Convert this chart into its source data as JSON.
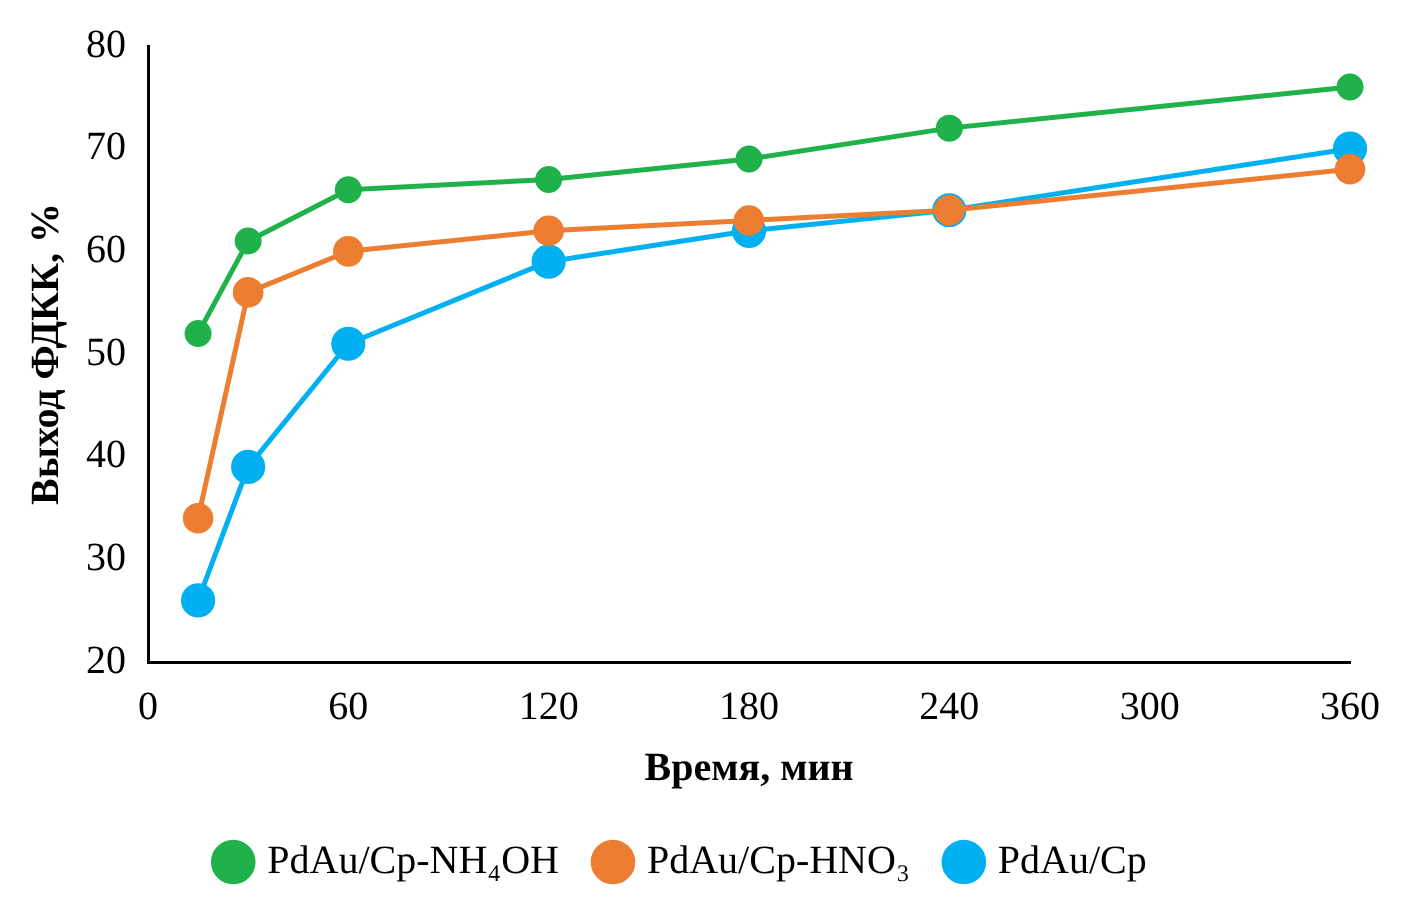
{
  "chart_data": {
    "type": "line",
    "xlabel": "Время, мин",
    "ylabel": "Выход ФДКК, %",
    "x": [
      15,
      30,
      60,
      120,
      180,
      240,
      360
    ],
    "xlim": [
      0,
      360
    ],
    "xticks": [
      0,
      60,
      120,
      180,
      240,
      300,
      360
    ],
    "ylim": [
      20,
      80
    ],
    "yticks": [
      20,
      30,
      40,
      50,
      60,
      70,
      80
    ],
    "grid": false,
    "legend": "bottom",
    "marker": "circle",
    "line_style": "solid",
    "series": [
      {
        "name": "PdAu/Cp-NH₄OH",
        "color": "#1fb24a",
        "values": [
          52,
          61,
          66,
          67,
          69,
          72,
          76
        ]
      },
      {
        "name": "PdAu/Cp-HNO₃",
        "color": "#ed7d31",
        "values": [
          34,
          56,
          60,
          62,
          63,
          64,
          68
        ]
      },
      {
        "name": "PdAu/Cp",
        "color": "#00b0f0",
        "values": [
          26,
          39,
          51,
          59,
          62,
          64,
          70
        ]
      }
    ]
  }
}
